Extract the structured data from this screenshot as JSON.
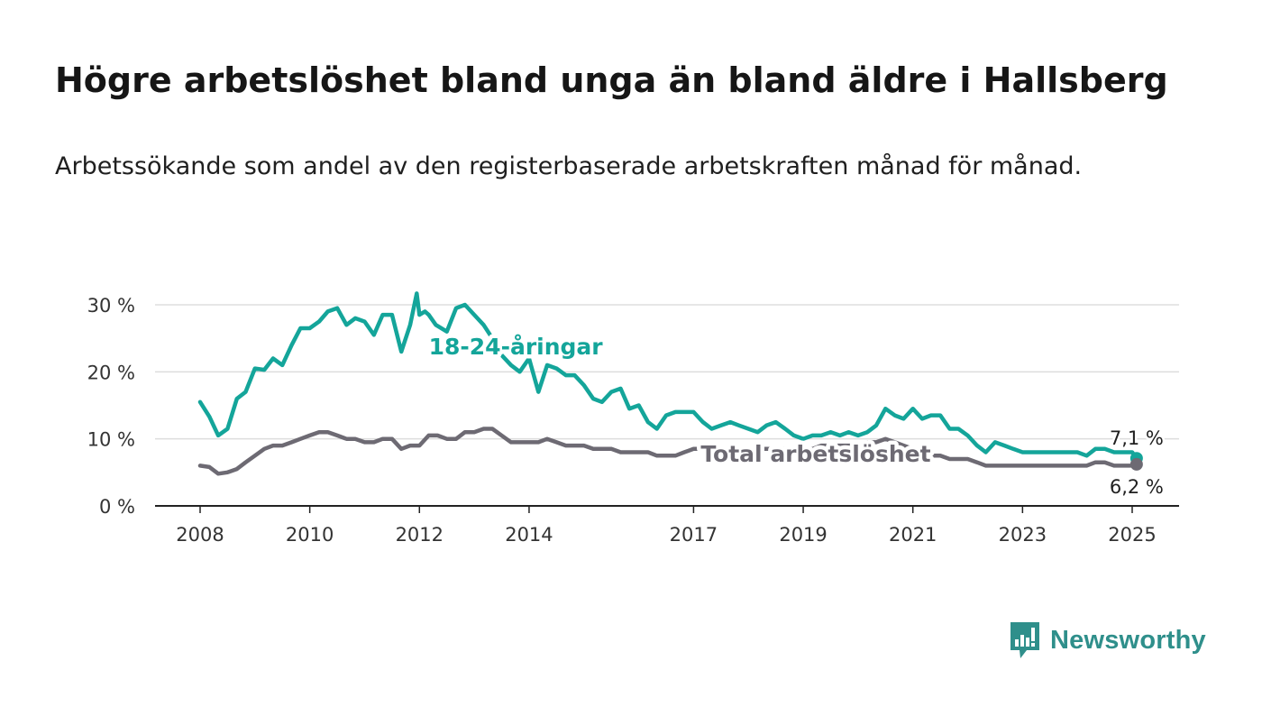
{
  "title": "Högre arbetslöshet bland unga än bland äldre i Hallsberg",
  "subtitle": "Arbetssökande som andel av den registerbaserade arbetskraften månad för månad.",
  "brand": {
    "name": "Newsworthy",
    "color": "#2f8f8b"
  },
  "colors": {
    "youth": "#14a59a",
    "total": "#6d6a73",
    "grid": "#dddddd",
    "axis": "#222222"
  },
  "chart_data": {
    "type": "line",
    "title": "Högre arbetslöshet bland unga än bland äldre i Hallsberg",
    "subtitle": "Arbetssökande som andel av den registerbaserade arbetskraften månad för månad.",
    "xlabel": "",
    "ylabel": "",
    "xlim": [
      2008.0,
      2025.5
    ],
    "ylim": [
      0,
      30
    ],
    "grid": true,
    "x_ticks": [
      2008,
      2010,
      2012,
      2014,
      2017,
      2019,
      2021,
      2023,
      2025
    ],
    "x_tick_labels": [
      "2008",
      "2010",
      "2012",
      "2014",
      "2017",
      "2019",
      "2021",
      "2023",
      "2025"
    ],
    "y_ticks": [
      0,
      10,
      20,
      30
    ],
    "y_tick_labels": [
      "0 %",
      "10 %",
      "20 %",
      "30 %"
    ],
    "series": [
      {
        "name": "18-24-åringar",
        "color": "#14a59a",
        "end_label": "7,1 %",
        "points": [
          [
            2008.0,
            15.5
          ],
          [
            2008.17,
            13.3
          ],
          [
            2008.33,
            10.5
          ],
          [
            2008.5,
            11.5
          ],
          [
            2008.67,
            16.0
          ],
          [
            2008.83,
            17.0
          ],
          [
            2009.0,
            20.5
          ],
          [
            2009.17,
            20.3
          ],
          [
            2009.33,
            22.0
          ],
          [
            2009.5,
            21.0
          ],
          [
            2009.67,
            24.0
          ],
          [
            2009.83,
            26.5
          ],
          [
            2010.0,
            26.5
          ],
          [
            2010.17,
            27.5
          ],
          [
            2010.33,
            29.0
          ],
          [
            2010.5,
            29.5
          ],
          [
            2010.67,
            27.0
          ],
          [
            2010.83,
            28.0
          ],
          [
            2011.0,
            27.5
          ],
          [
            2011.17,
            25.5
          ],
          [
            2011.33,
            28.5
          ],
          [
            2011.5,
            28.5
          ],
          [
            2011.67,
            23.0
          ],
          [
            2011.83,
            27.0
          ],
          [
            2012.0,
            28.5
          ],
          [
            2012.17,
            28.5
          ],
          [
            2011.95,
            31.7
          ],
          [
            2012.1,
            29.0
          ],
          [
            2012.3,
            27.0
          ],
          [
            2012.5,
            26.0
          ],
          [
            2012.67,
            29.5
          ],
          [
            2012.83,
            30.0
          ],
          [
            2013.0,
            28.5
          ],
          [
            2013.17,
            27.0
          ],
          [
            2013.33,
            25.0
          ],
          [
            2013.5,
            22.5
          ],
          [
            2013.67,
            21.0
          ],
          [
            2013.83,
            20.0
          ],
          [
            2014.0,
            22.0
          ],
          [
            2014.17,
            17.0
          ],
          [
            2014.33,
            21.0
          ],
          [
            2014.5,
            20.5
          ],
          [
            2014.67,
            19.5
          ],
          [
            2014.83,
            19.5
          ],
          [
            2015.0,
            18.0
          ],
          [
            2015.17,
            16.0
          ],
          [
            2015.33,
            15.5
          ],
          [
            2015.5,
            17.0
          ],
          [
            2015.67,
            17.5
          ],
          [
            2015.83,
            14.5
          ],
          [
            2016.0,
            15.0
          ],
          [
            2016.17,
            12.5
          ],
          [
            2016.33,
            11.5
          ],
          [
            2016.5,
            13.5
          ],
          [
            2016.67,
            14.0
          ],
          [
            2016.83,
            14.0
          ],
          [
            2017.0,
            14.0
          ],
          [
            2017.17,
            12.5
          ],
          [
            2017.33,
            11.5
          ],
          [
            2017.5,
            12.0
          ],
          [
            2017.67,
            12.5
          ],
          [
            2017.83,
            12.0
          ],
          [
            2018.0,
            11.5
          ],
          [
            2018.17,
            11.0
          ],
          [
            2018.33,
            12.0
          ],
          [
            2018.5,
            12.5
          ],
          [
            2018.67,
            11.5
          ],
          [
            2018.83,
            10.5
          ],
          [
            2019.0,
            10.0
          ],
          [
            2019.17,
            10.5
          ],
          [
            2019.33,
            10.5
          ],
          [
            2019.5,
            11.0
          ],
          [
            2019.67,
            10.5
          ],
          [
            2019.83,
            11.0
          ],
          [
            2020.0,
            10.5
          ],
          [
            2020.17,
            11.0
          ],
          [
            2020.33,
            12.0
          ],
          [
            2020.5,
            14.5
          ],
          [
            2020.67,
            13.5
          ],
          [
            2020.83,
            13.0
          ],
          [
            2021.0,
            14.5
          ],
          [
            2021.17,
            13.0
          ],
          [
            2021.33,
            13.5
          ],
          [
            2021.5,
            13.5
          ],
          [
            2021.67,
            11.5
          ],
          [
            2021.83,
            11.5
          ],
          [
            2022.0,
            10.5
          ],
          [
            2022.17,
            9.0
          ],
          [
            2022.33,
            8.0
          ],
          [
            2022.5,
            9.5
          ],
          [
            2022.67,
            9.0
          ],
          [
            2022.83,
            8.5
          ],
          [
            2023.0,
            8.0
          ],
          [
            2023.17,
            8.0
          ],
          [
            2023.33,
            8.0
          ],
          [
            2023.5,
            8.0
          ],
          [
            2023.67,
            8.0
          ],
          [
            2023.83,
            8.0
          ],
          [
            2024.0,
            8.0
          ],
          [
            2024.17,
            7.5
          ],
          [
            2024.33,
            8.5
          ],
          [
            2024.5,
            8.5
          ],
          [
            2024.67,
            8.0
          ],
          [
            2024.83,
            8.0
          ],
          [
            2025.0,
            8.0
          ],
          [
            2025.08,
            7.1
          ]
        ]
      },
      {
        "name": "Total arbetslöshet",
        "color": "#6d6a73",
        "end_label": "6,2 %",
        "points": [
          [
            2008.0,
            6.0
          ],
          [
            2008.17,
            5.8
          ],
          [
            2008.33,
            4.8
          ],
          [
            2008.5,
            5.0
          ],
          [
            2008.67,
            5.5
          ],
          [
            2008.83,
            6.5
          ],
          [
            2009.0,
            7.5
          ],
          [
            2009.17,
            8.5
          ],
          [
            2009.33,
            9.0
          ],
          [
            2009.5,
            9.0
          ],
          [
            2009.67,
            9.5
          ],
          [
            2009.83,
            10.0
          ],
          [
            2010.0,
            10.5
          ],
          [
            2010.17,
            11.0
          ],
          [
            2010.33,
            11.0
          ],
          [
            2010.5,
            10.5
          ],
          [
            2010.67,
            10.0
          ],
          [
            2010.83,
            10.0
          ],
          [
            2011.0,
            9.5
          ],
          [
            2011.17,
            9.5
          ],
          [
            2011.33,
            10.0
          ],
          [
            2011.5,
            10.0
          ],
          [
            2011.67,
            8.5
          ],
          [
            2011.83,
            9.0
          ],
          [
            2012.0,
            9.0
          ],
          [
            2012.17,
            10.5
          ],
          [
            2012.33,
            10.5
          ],
          [
            2012.5,
            10.0
          ],
          [
            2012.67,
            10.0
          ],
          [
            2012.83,
            11.0
          ],
          [
            2013.0,
            11.0
          ],
          [
            2013.17,
            11.5
          ],
          [
            2013.33,
            11.5
          ],
          [
            2013.5,
            10.5
          ],
          [
            2013.67,
            9.5
          ],
          [
            2013.83,
            9.5
          ],
          [
            2014.0,
            9.5
          ],
          [
            2014.17,
            9.5
          ],
          [
            2014.33,
            10.0
          ],
          [
            2014.5,
            9.5
          ],
          [
            2014.67,
            9.0
          ],
          [
            2014.83,
            9.0
          ],
          [
            2015.0,
            9.0
          ],
          [
            2015.17,
            8.5
          ],
          [
            2015.33,
            8.5
          ],
          [
            2015.5,
            8.5
          ],
          [
            2015.67,
            8.0
          ],
          [
            2015.83,
            8.0
          ],
          [
            2016.0,
            8.0
          ],
          [
            2016.17,
            8.0
          ],
          [
            2016.33,
            7.5
          ],
          [
            2016.5,
            7.5
          ],
          [
            2016.67,
            7.5
          ],
          [
            2016.83,
            8.0
          ],
          [
            2017.0,
            8.5
          ],
          [
            2017.17,
            8.5
          ],
          [
            2017.33,
            8.5
          ],
          [
            2017.5,
            8.5
          ],
          [
            2017.67,
            8.5
          ],
          [
            2017.83,
            8.5
          ],
          [
            2018.0,
            8.5
          ],
          [
            2018.17,
            8.5
          ],
          [
            2018.33,
            8.5
          ],
          [
            2018.5,
            8.5
          ],
          [
            2018.67,
            8.5
          ],
          [
            2018.83,
            8.5
          ],
          [
            2019.0,
            8.5
          ],
          [
            2019.17,
            8.5
          ],
          [
            2019.33,
            9.0
          ],
          [
            2019.5,
            9.0
          ],
          [
            2019.67,
            9.0
          ],
          [
            2019.83,
            9.0
          ],
          [
            2020.0,
            9.0
          ],
          [
            2020.17,
            9.5
          ],
          [
            2020.33,
            9.5
          ],
          [
            2020.5,
            10.0
          ],
          [
            2020.67,
            9.5
          ],
          [
            2020.83,
            9.0
          ],
          [
            2021.0,
            8.5
          ],
          [
            2021.17,
            8.0
          ],
          [
            2021.33,
            7.5
          ],
          [
            2021.5,
            7.5
          ],
          [
            2021.67,
            7.0
          ],
          [
            2021.83,
            7.0
          ],
          [
            2022.0,
            7.0
          ],
          [
            2022.17,
            6.5
          ],
          [
            2022.33,
            6.0
          ],
          [
            2022.5,
            6.0
          ],
          [
            2022.67,
            6.0
          ],
          [
            2022.83,
            6.0
          ],
          [
            2023.0,
            6.0
          ],
          [
            2023.17,
            6.0
          ],
          [
            2023.33,
            6.0
          ],
          [
            2023.5,
            6.0
          ],
          [
            2023.67,
            6.0
          ],
          [
            2023.83,
            6.0
          ],
          [
            2024.0,
            6.0
          ],
          [
            2024.17,
            6.0
          ],
          [
            2024.33,
            6.5
          ],
          [
            2024.5,
            6.5
          ],
          [
            2024.67,
            6.0
          ],
          [
            2024.83,
            6.0
          ],
          [
            2025.0,
            6.0
          ],
          [
            2025.08,
            6.2
          ]
        ]
      }
    ]
  }
}
